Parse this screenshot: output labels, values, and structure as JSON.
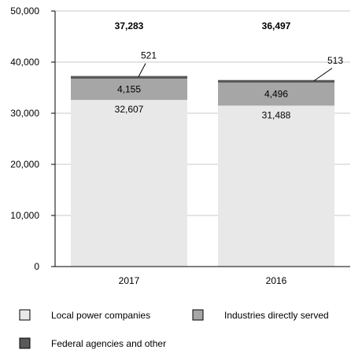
{
  "chart_data": {
    "type": "bar",
    "stacked": true,
    "categories": [
      "2017",
      "2016"
    ],
    "series": [
      {
        "name": "Local power companies",
        "values": [
          32607,
          31488
        ],
        "labels": [
          "32,607",
          "31,488"
        ],
        "color": "#e8e8e8"
      },
      {
        "name": "Industries directly served",
        "values": [
          4155,
          4496
        ],
        "labels": [
          "4,155",
          "4,496"
        ],
        "color": "#a6a6a6"
      },
      {
        "name": "Federal agencies and other",
        "values": [
          521,
          513
        ],
        "labels": [
          "521",
          "513"
        ],
        "color": "#595959"
      }
    ],
    "totals": [
      "37,283",
      "36,497"
    ],
    "ylim": [
      0,
      50000
    ],
    "yticks": [
      0,
      10000,
      20000,
      30000,
      40000,
      50000
    ],
    "ytick_labels": [
      "0",
      "10,000",
      "20,000",
      "30,000",
      "40,000",
      "50,000"
    ],
    "grid": true,
    "legend_position": "bottom"
  }
}
